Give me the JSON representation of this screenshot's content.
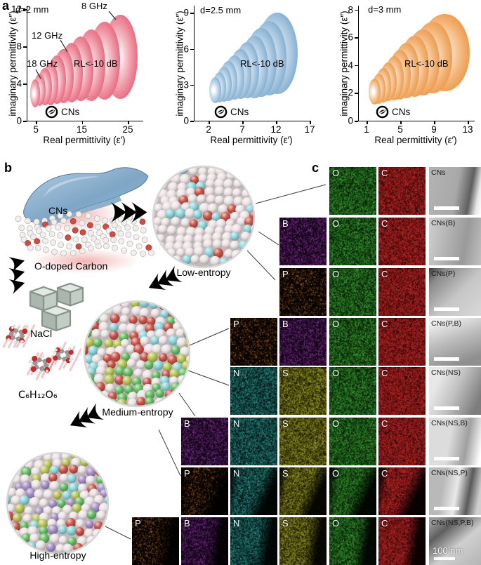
{
  "figure": {
    "panel_a_label": "a",
    "panel_b_label": "b",
    "panel_c_label": "c"
  },
  "charts": [
    {
      "thickness_label": "d=2 mm",
      "rl_label": "RL<-10 dB",
      "sample_label": "CNs",
      "xlabel": "Real permittivity (ε′)",
      "ylabel": "imaginary permittivity (ε″)",
      "xticks": [
        "5",
        "15",
        "25"
      ],
      "yticks": [
        "0",
        "4",
        "8",
        "12"
      ],
      "xlim": [
        3,
        28.2
      ],
      "ylim": [
        0,
        12.4
      ],
      "edge_color": "#ee8f9f",
      "deep_color": "#e87286",
      "freq_annotations": [
        {
          "text": "8 GHz",
          "tx": 116,
          "ty": 1,
          "leader": [
            155,
            16,
            165,
            28
          ]
        },
        {
          "text": "12 GHz",
          "tx": 45,
          "ty": 43,
          "leader": [
            86,
            57,
            96,
            74
          ]
        },
        {
          "text": "18 GHz",
          "tx": 38,
          "ty": 83,
          "leader": [
            51,
            99,
            58,
            112
          ]
        }
      ],
      "ellipses": [
        [
          18,
          4.7,
          2.95,
          1.1,
          1.5
        ],
        [
          17,
          5.7,
          3.3,
          1.3,
          1.75
        ],
        [
          16,
          6.8,
          3.65,
          1.5,
          2.0
        ],
        [
          15,
          8.0,
          4.0,
          1.7,
          2.3
        ],
        [
          14,
          9.4,
          4.4,
          1.95,
          2.6
        ],
        [
          13,
          10.9,
          4.8,
          2.2,
          2.9
        ],
        [
          12,
          12.6,
          5.2,
          2.45,
          3.2
        ],
        [
          11,
          14.6,
          5.6,
          2.75,
          3.5
        ],
        [
          10,
          16.9,
          6.0,
          3.05,
          3.85
        ],
        [
          9,
          19.8,
          6.45,
          3.4,
          4.2
        ],
        [
          8,
          23.3,
          6.9,
          3.75,
          4.55
        ]
      ]
    },
    {
      "thickness_label": "d=2.5 mm",
      "rl_label": "RL<-10 dB",
      "sample_label": "CNs",
      "xlabel": "Real permittivity (ε′)",
      "ylabel": "imaginary permittivity (ε″)",
      "xticks": [
        "2",
        "7",
        "12",
        "17"
      ],
      "yticks": [
        "0",
        "3",
        "6",
        "9"
      ],
      "xlim": [
        -0.2,
        17.0
      ],
      "ylim": [
        0,
        9.6
      ],
      "edge_color": "#a6c6e0",
      "deep_color": "#8cb3d4",
      "freq_annotations": [],
      "ellipses": [
        [
          18,
          2.9,
          2.55,
          0.9,
          1.1
        ],
        [
          17,
          3.5,
          2.8,
          1.0,
          1.25
        ],
        [
          16,
          4.2,
          3.05,
          1.15,
          1.45
        ],
        [
          15,
          4.9,
          3.3,
          1.3,
          1.65
        ],
        [
          14,
          5.7,
          3.6,
          1.45,
          1.85
        ],
        [
          13,
          6.6,
          3.9,
          1.6,
          2.1
        ],
        [
          12,
          7.6,
          4.2,
          1.8,
          2.35
        ],
        [
          11,
          8.7,
          4.5,
          2.0,
          2.6
        ],
        [
          10,
          9.7,
          4.85,
          2.25,
          2.85
        ],
        [
          9,
          10.9,
          5.2,
          2.6,
          3.1
        ],
        [
          8,
          12.1,
          5.6,
          3.0,
          3.4
        ]
      ]
    },
    {
      "thickness_label": "d=3 mm",
      "rl_label": "RL<-10 dB",
      "sample_label": "CNs",
      "xlabel": "Real permittivity (ε′)",
      "ylabel": "imaginary permittivity (ε″)",
      "xticks": [
        "1",
        "5",
        "9",
        "13"
      ],
      "yticks": [
        "0",
        "2",
        "4",
        "6",
        "8"
      ],
      "xlim": [
        0,
        13.75
      ],
      "ylim": [
        0,
        8.3
      ],
      "edge_color": "#f3b274",
      "deep_color": "#eda057",
      "freq_annotations": [],
      "ellipses": [
        [
          18,
          1.9,
          2.1,
          0.7,
          0.95
        ],
        [
          17,
          2.4,
          2.3,
          0.8,
          1.1
        ],
        [
          16,
          2.9,
          2.55,
          0.9,
          1.25
        ],
        [
          15,
          3.5,
          2.8,
          1.0,
          1.4
        ],
        [
          14,
          4.2,
          3.05,
          1.15,
          1.6
        ],
        [
          13,
          4.9,
          3.3,
          1.3,
          1.8
        ],
        [
          12,
          5.7,
          3.6,
          1.5,
          2.0
        ],
        [
          11,
          6.6,
          3.9,
          1.7,
          2.2
        ],
        [
          10,
          7.6,
          4.2,
          1.95,
          2.4
        ],
        [
          9,
          8.8,
          4.55,
          2.3,
          2.6
        ],
        [
          8,
          10.2,
          4.9,
          2.95,
          2.8
        ]
      ]
    }
  ],
  "panel_b": {
    "cns_label": "CNs",
    "o_doped_label": "O-doped Carbon",
    "nacl_label": "NaCl",
    "glucose_label": "C₆H₁₂O₆",
    "low_label": "Low-entropy",
    "medium_label": "Medium-entropy",
    "high_label": "High-entropy",
    "sphere_palettes": {
      "low": [
        [
          "#ece2e4",
          0.78
        ],
        [
          "#c9544a",
          0.12
        ],
        [
          "#8ed5db",
          0.1
        ]
      ],
      "medium": [
        [
          "#ece2e4",
          0.5
        ],
        [
          "#c9544a",
          0.13
        ],
        [
          "#8ed5db",
          0.11
        ],
        [
          "#b7c455",
          0.14
        ],
        [
          "#67bd66",
          0.12
        ]
      ],
      "high": [
        [
          "#ece2e4",
          0.4
        ],
        [
          "#c9544a",
          0.13
        ],
        [
          "#8ed5db",
          0.11
        ],
        [
          "#b7c455",
          0.12
        ],
        [
          "#67bd66",
          0.12
        ],
        [
          "#a78fc5",
          0.12
        ]
      ]
    }
  },
  "panel_c": {
    "scale_label": "100 nm",
    "element_colors": {
      "O": {
        "bg": "#081c06",
        "dots": [
          "#2f8f2a",
          "#52c24a",
          "#1e6b1c"
        ],
        "density": 4000
      },
      "C": {
        "bg": "#230404",
        "dots": [
          "#b42222",
          "#d63a3a",
          "#8f1a1a"
        ],
        "density": 6000
      },
      "B": {
        "bg": "#150619",
        "dots": [
          "#8a2da0",
          "#b44fd0",
          "#5f2070"
        ],
        "density": 1800
      },
      "P": {
        "bg": "#0a0401",
        "dots": [
          "#c9762a",
          "#e8933a",
          "#8f5520"
        ],
        "density": 800
      },
      "N": {
        "bg": "#041817",
        "dots": [
          "#2a8f8a",
          "#43bab2",
          "#1d6662"
        ],
        "density": 3200
      },
      "S": {
        "bg": "#1e1e05",
        "dots": [
          "#9a9a22",
          "#c2c235",
          "#6f6f18"
        ],
        "density": 3600
      }
    },
    "rows": [
      {
        "tem_label": "CNs",
        "elements": [
          "O",
          "C"
        ]
      },
      {
        "tem_label": "CNs(B)",
        "elements": [
          "B",
          "O",
          "C"
        ]
      },
      {
        "tem_label": "CNs(P)",
        "elements": [
          "P",
          "O",
          "C"
        ]
      },
      {
        "tem_label": "CNs(P,B)",
        "elements": [
          "P",
          "B",
          "O",
          "C"
        ]
      },
      {
        "tem_label": "CNs(NS)",
        "elements": [
          "N",
          "S",
          "O",
          "C"
        ]
      },
      {
        "tem_label": "CNs(NS,B)",
        "elements": [
          "B",
          "N",
          "S",
          "O",
          "C"
        ]
      },
      {
        "tem_label": "CNs(NS,P)",
        "elements": [
          "P",
          "N",
          "S",
          "O",
          "C"
        ]
      },
      {
        "tem_label": "CNs(NS,P,B)",
        "elements": [
          "P",
          "B",
          "N",
          "S",
          "O",
          "C"
        ]
      }
    ]
  }
}
